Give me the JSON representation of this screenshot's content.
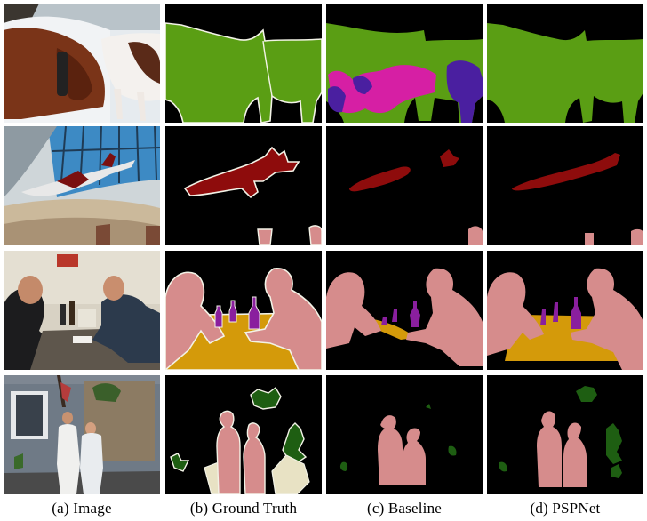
{
  "figure": {
    "captions": [
      "(a) Image",
      "(b) Ground Truth",
      "(c) Baseline",
      "(d) PSPNet"
    ],
    "colors": {
      "background": "#000000",
      "cow": "#5a9e14",
      "sheep": "#d61fa4",
      "dog": "#4a1fa0",
      "aeroplane": "#8e0c0c",
      "person": "#d68c8c",
      "bottle": "#8a1f9e",
      "diningtable": "#d49a0a",
      "pottedplant": "#1e5e12",
      "chair": "#e8e2c4",
      "boundary": "#f2f2e6"
    },
    "rows": [
      "cow",
      "aeroplane",
      "people-at-table",
      "people-on-porch"
    ]
  }
}
